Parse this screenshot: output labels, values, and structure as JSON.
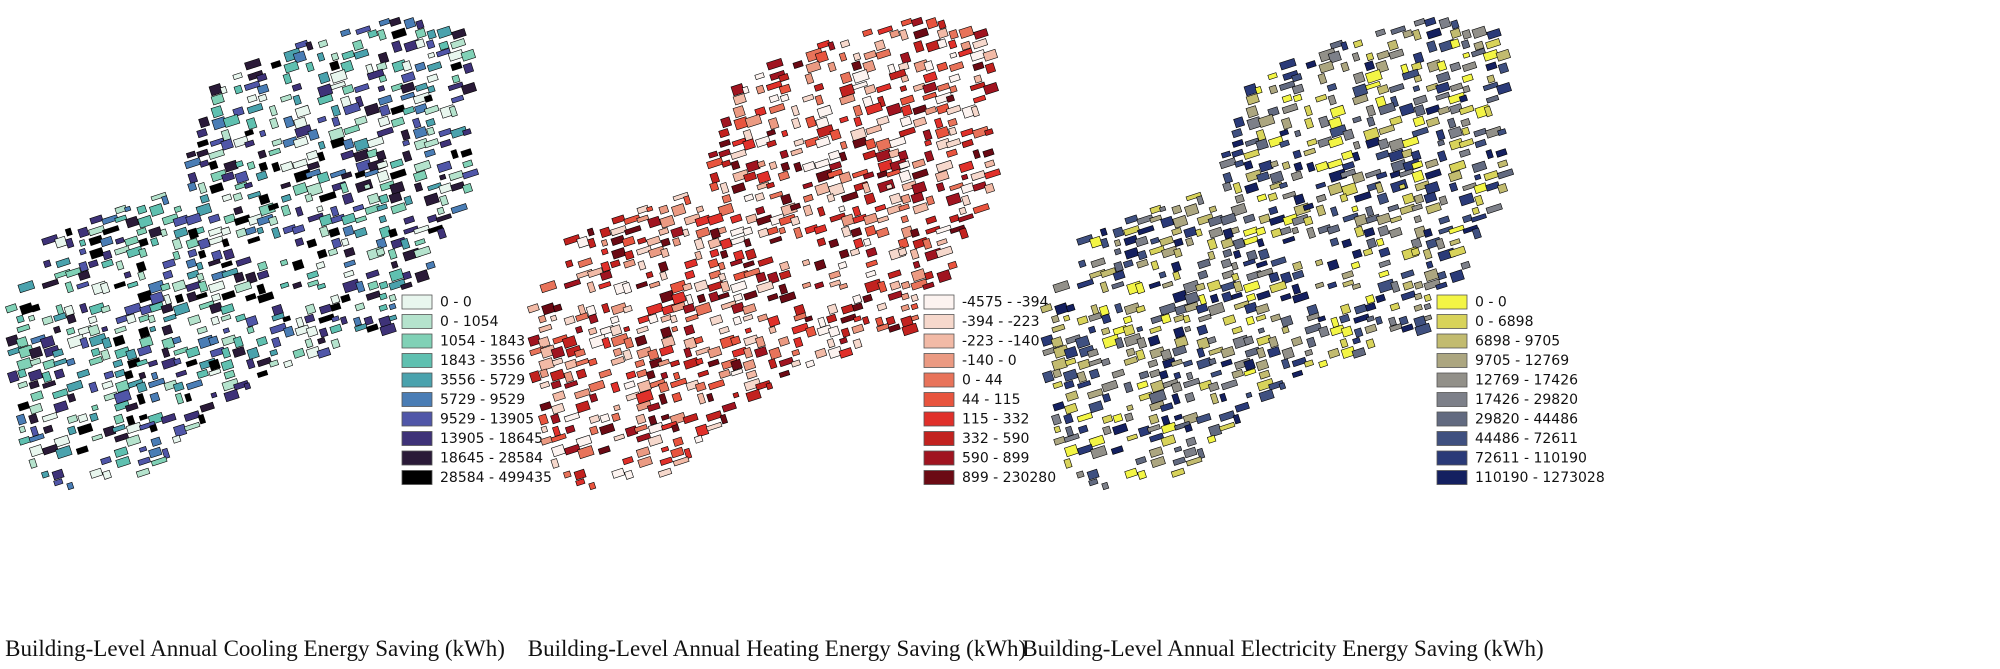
{
  "panels": [
    {
      "caption": "Building-Level Annual Cooling Energy Saving (kWh)",
      "legend": [
        {
          "label": "0 - 0",
          "color": "#e8f6ee"
        },
        {
          "label": "0 - 1054",
          "color": "#b5e3cd"
        },
        {
          "label": "1054 - 1843",
          "color": "#80d1b6"
        },
        {
          "label": "1843 - 3556",
          "color": "#5fc0b0"
        },
        {
          "label": "3556 - 5729",
          "color": "#4aa2ad"
        },
        {
          "label": "5729 - 9529",
          "color": "#4a7db5"
        },
        {
          "label": "9529 - 13905",
          "color": "#5056a8"
        },
        {
          "label": "13905 - 18645",
          "color": "#3e3278"
        },
        {
          "label": "18645 - 28584",
          "color": "#2a1a38"
        },
        {
          "label": "28584 - 499435",
          "color": "#000000"
        }
      ]
    },
    {
      "caption": "Building-Level Annual Heating Energy Saving (kWh)",
      "legend": [
        {
          "label": "-4575 - -394",
          "color": "#fcf3f0"
        },
        {
          "label": "-394 - -223",
          "color": "#f6d8cc"
        },
        {
          "label": "-223 - -140",
          "color": "#f2baa6"
        },
        {
          "label": "-140 - 0",
          "color": "#eb9a82"
        },
        {
          "label": "0 - 44",
          "color": "#e8735a"
        },
        {
          "label": "44 - 115",
          "color": "#e8543e"
        },
        {
          "label": "115 - 332",
          "color": "#e0302a"
        },
        {
          "label": "332 - 590",
          "color": "#c2221f"
        },
        {
          "label": "590 - 899",
          "color": "#a01420"
        },
        {
          "label": "899 - 230280",
          "color": "#6b0a14"
        }
      ]
    },
    {
      "caption": "Building-Level Annual Electricity Energy Saving (kWh)",
      "legend": [
        {
          "label": "0 - 0",
          "color": "#f3f545"
        },
        {
          "label": "0 - 6898",
          "color": "#d8d35a"
        },
        {
          "label": "6898 - 9705",
          "color": "#c2bb6f"
        },
        {
          "label": "9705 - 12769",
          "color": "#aca680"
        },
        {
          "label": "12769 - 17426",
          "color": "#929089"
        },
        {
          "label": "17426 - 29820",
          "color": "#7d8089"
        },
        {
          "label": "29820 - 44486",
          "color": "#626a80"
        },
        {
          "label": "44486 - 72611",
          "color": "#3f5080"
        },
        {
          "label": "72611 - 110190",
          "color": "#2a3a78"
        },
        {
          "label": "110190 - 1273028",
          "color": "#142060"
        }
      ]
    }
  ]
}
